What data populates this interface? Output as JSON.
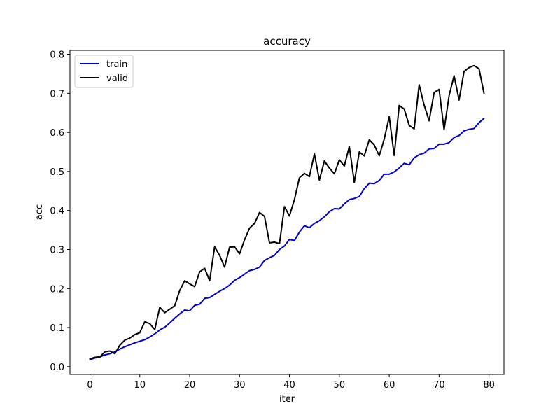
{
  "chart_data": {
    "type": "line",
    "title": "accuracy",
    "xlabel": "iter",
    "ylabel": "acc",
    "xlim": [
      -4,
      83
    ],
    "ylim": [
      -0.02,
      0.81
    ],
    "xticks": [
      0,
      10,
      20,
      30,
      40,
      50,
      60,
      70,
      80
    ],
    "yticks": [
      0.0,
      0.1,
      0.2,
      0.3,
      0.4,
      0.5,
      0.6,
      0.7,
      0.8
    ],
    "xtick_labels": [
      "0",
      "10",
      "20",
      "30",
      "40",
      "50",
      "60",
      "70",
      "80"
    ],
    "ytick_labels": [
      "0.0",
      "0.1",
      "0.2",
      "0.3",
      "0.4",
      "0.5",
      "0.6",
      "0.7",
      "0.8"
    ],
    "grid": false,
    "legend": "top-left",
    "series": [
      {
        "name": "train",
        "color": "#0000cc",
        "values": [
          0.018,
          0.022,
          0.025,
          0.03,
          0.033,
          0.038,
          0.045,
          0.051,
          0.056,
          0.061,
          0.065,
          0.069,
          0.076,
          0.084,
          0.094,
          0.101,
          0.112,
          0.124,
          0.135,
          0.145,
          0.143,
          0.157,
          0.16,
          0.175,
          0.177,
          0.185,
          0.193,
          0.2,
          0.209,
          0.221,
          0.228,
          0.237,
          0.246,
          0.249,
          0.255,
          0.272,
          0.279,
          0.285,
          0.3,
          0.309,
          0.326,
          0.323,
          0.345,
          0.361,
          0.356,
          0.367,
          0.374,
          0.384,
          0.397,
          0.405,
          0.404,
          0.417,
          0.428,
          0.431,
          0.436,
          0.456,
          0.47,
          0.469,
          0.477,
          0.493,
          0.493,
          0.499,
          0.509,
          0.521,
          0.517,
          0.535,
          0.543,
          0.547,
          0.558,
          0.559,
          0.57,
          0.57,
          0.574,
          0.587,
          0.592,
          0.604,
          0.608,
          0.61,
          0.625,
          0.636
        ]
      },
      {
        "name": "valid",
        "color": "#000000",
        "values": [
          0.02,
          0.024,
          0.025,
          0.038,
          0.04,
          0.033,
          0.055,
          0.068,
          0.073,
          0.082,
          0.087,
          0.115,
          0.11,
          0.095,
          0.152,
          0.138,
          0.147,
          0.156,
          0.195,
          0.22,
          0.212,
          0.205,
          0.243,
          0.252,
          0.22,
          0.307,
          0.285,
          0.255,
          0.306,
          0.307,
          0.289,
          0.325,
          0.355,
          0.367,
          0.395,
          0.385,
          0.317,
          0.319,
          0.315,
          0.41,
          0.386,
          0.428,
          0.484,
          0.495,
          0.487,
          0.545,
          0.478,
          0.527,
          0.509,
          0.494,
          0.53,
          0.514,
          0.564,
          0.472,
          0.55,
          0.54,
          0.581,
          0.568,
          0.54,
          0.583,
          0.64,
          0.541,
          0.669,
          0.66,
          0.618,
          0.609,
          0.722,
          0.67,
          0.63,
          0.702,
          0.71,
          0.607,
          0.694,
          0.745,
          0.683,
          0.756,
          0.766,
          0.771,
          0.763,
          0.7
        ]
      }
    ]
  }
}
